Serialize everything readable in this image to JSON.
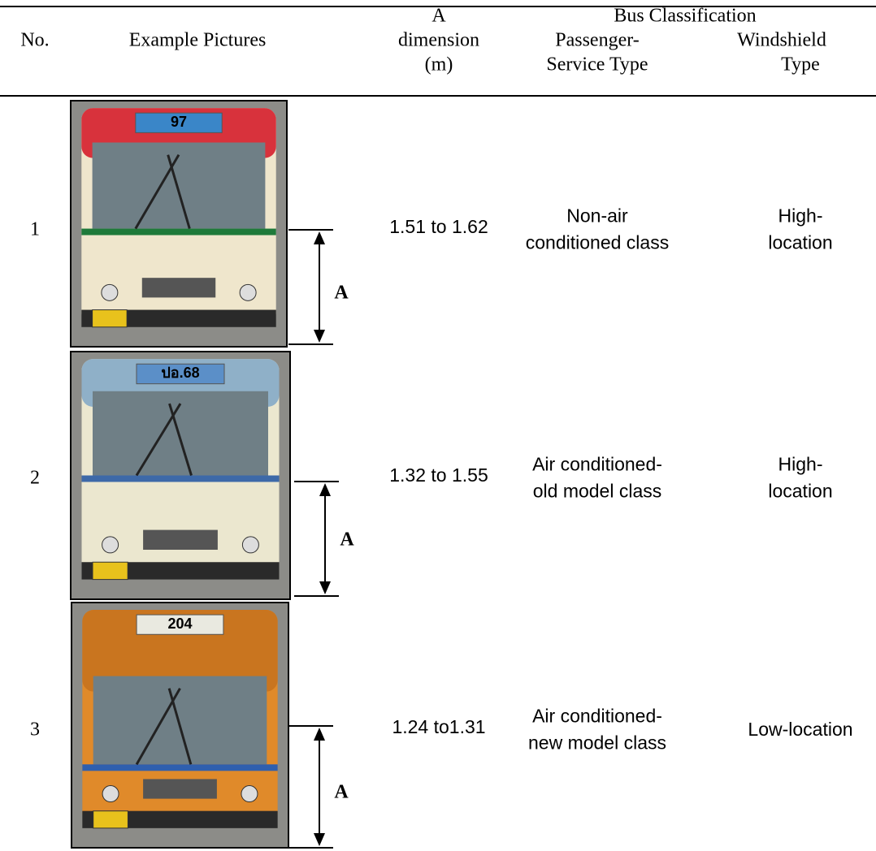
{
  "header": {
    "group_title": "Bus Classification",
    "columns": [
      [
        "No."
      ],
      [
        "Example Pictures"
      ],
      [
        "A",
        "dimension",
        "(m)"
      ],
      [
        "Passenger-",
        "Service Type"
      ],
      [
        "Windshield",
        "Type"
      ]
    ]
  },
  "rows": [
    {
      "no": "1",
      "route_sign": "97",
      "dimension_label": "A",
      "a_dimension": "1.51 to 1.62",
      "passenger_service_type": [
        "Non-air",
        "conditioned class"
      ],
      "windshield_type": [
        "High-",
        "location"
      ]
    },
    {
      "no": "2",
      "route_sign": "ปอ.68",
      "dimension_label": "A",
      "a_dimension": "1.32 to 1.55",
      "passenger_service_type": [
        "Air conditioned-",
        "old model class"
      ],
      "windshield_type": [
        "High-",
        "location"
      ]
    },
    {
      "no": "3",
      "route_sign": "204",
      "dimension_label": "A",
      "a_dimension": "1.24 to1.31",
      "passenger_service_type": [
        "Air conditioned-",
        "new model class"
      ],
      "windshield_type": [
        "Low-location"
      ]
    }
  ]
}
